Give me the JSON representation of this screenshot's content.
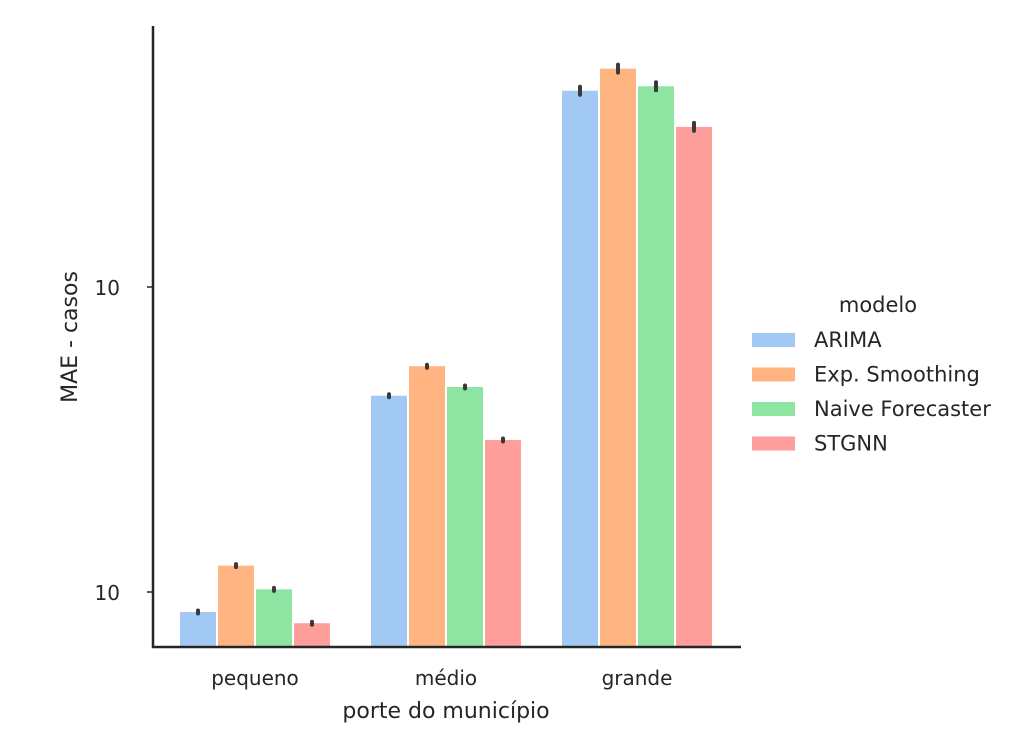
{
  "chart_data": {
    "type": "bar",
    "scale": "log",
    "categories": [
      "pequeno",
      "médio",
      "grande"
    ],
    "xlabel": "porte do município",
    "ylabel": "MAE - casos",
    "ylim": [
      0.65,
      68
    ],
    "yticks": [
      {
        "value": 1,
        "base": "10",
        "exp": "0"
      },
      {
        "value": 10,
        "base": "10",
        "exp": "1"
      }
    ],
    "legend": {
      "title": "modelo",
      "placement": "right"
    },
    "series": [
      {
        "name": "ARIMA",
        "color": "#a1c9f4",
        "values": [
          0.86,
          4.4,
          44.0
        ]
      },
      {
        "name": "Exp. Smoothing",
        "color": "#ffb482",
        "values": [
          1.22,
          5.5,
          52.0
        ]
      },
      {
        "name": "Naive Forecaster",
        "color": "#8de5a1",
        "values": [
          1.02,
          4.7,
          45.5
        ]
      },
      {
        "name": "STGNN",
        "color": "#ff9f9b",
        "values": [
          0.79,
          3.15,
          33.5
        ]
      }
    ]
  }
}
